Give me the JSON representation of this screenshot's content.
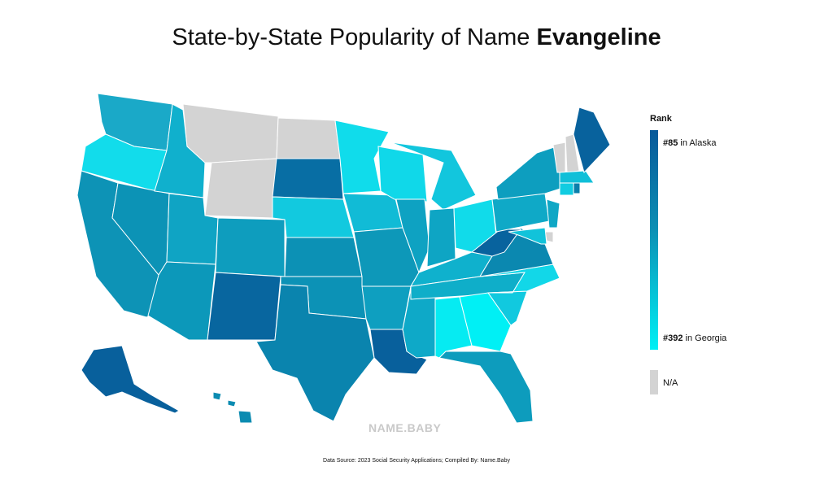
{
  "title": {
    "prefix": "State-by-State Popularity of Name ",
    "name": "Evangeline"
  },
  "legend": {
    "heading": "Rank",
    "top_rank": "#85",
    "top_state": " in Alaska",
    "bottom_rank": "#392",
    "bottom_state": " in Georgia",
    "na_label": "N/A",
    "colors": {
      "high": "#08599a",
      "mid": "#0c8fb4",
      "low": "#00f0f5",
      "na": "#d3d3d3"
    }
  },
  "watermark": "NAME.BABY",
  "source": "Data Source: 2023 Social Security Applications; Compiled By: Name.Baby",
  "states": {
    "WA": "#1aa9c8",
    "OR": "#12dceb",
    "CA": "#0d93b6",
    "NV": "#0c93b6",
    "ID": "#10b0cd",
    "MT": "#d3d3d3",
    "WY": "#d3d3d3",
    "UT": "#0fa4c4",
    "AZ": "#0c98ba",
    "CO": "#0e9dbe",
    "NM": "#08669f",
    "ND": "#d3d3d3",
    "SD": "#086ea4",
    "NE": "#12c9df",
    "KS": "#0c91b5",
    "OK": "#0c92b6",
    "TX": "#0a84ae",
    "MN": "#10dceb",
    "IA": "#11bbd6",
    "MO": "#0d98b9",
    "AR": "#0e9fc0",
    "LA": "#08609c",
    "WI": "#10d8e9",
    "IL": "#0ea2c2",
    "MS": "#0ea9c8",
    "MI": "#12c6dd",
    "IN": "#0ea5c4",
    "OH": "#11dbea",
    "KY": "#0fb1cd",
    "TN": "#0faec9",
    "AL": "#06ebf2",
    "GA": "#00f0f5",
    "FL": "#0d9cbd",
    "SC": "#11c9df",
    "NC": "#12d7e8",
    "VA": "#0b88b0",
    "WV": "#08639e",
    "PA": "#0fa9c7",
    "NY": "#0d9ebf",
    "ME": "#08629d",
    "NH": "#d3d3d3",
    "VT": "#d3d3d3",
    "MA": "#10bfd8",
    "CT": "#11cce1",
    "RI": "#0a7fab",
    "NJ": "#0fa7c5",
    "DE": "#d3d3d3",
    "MD": "#11c3da",
    "AK": "#08609c",
    "HI": "#0b8bb1"
  }
}
